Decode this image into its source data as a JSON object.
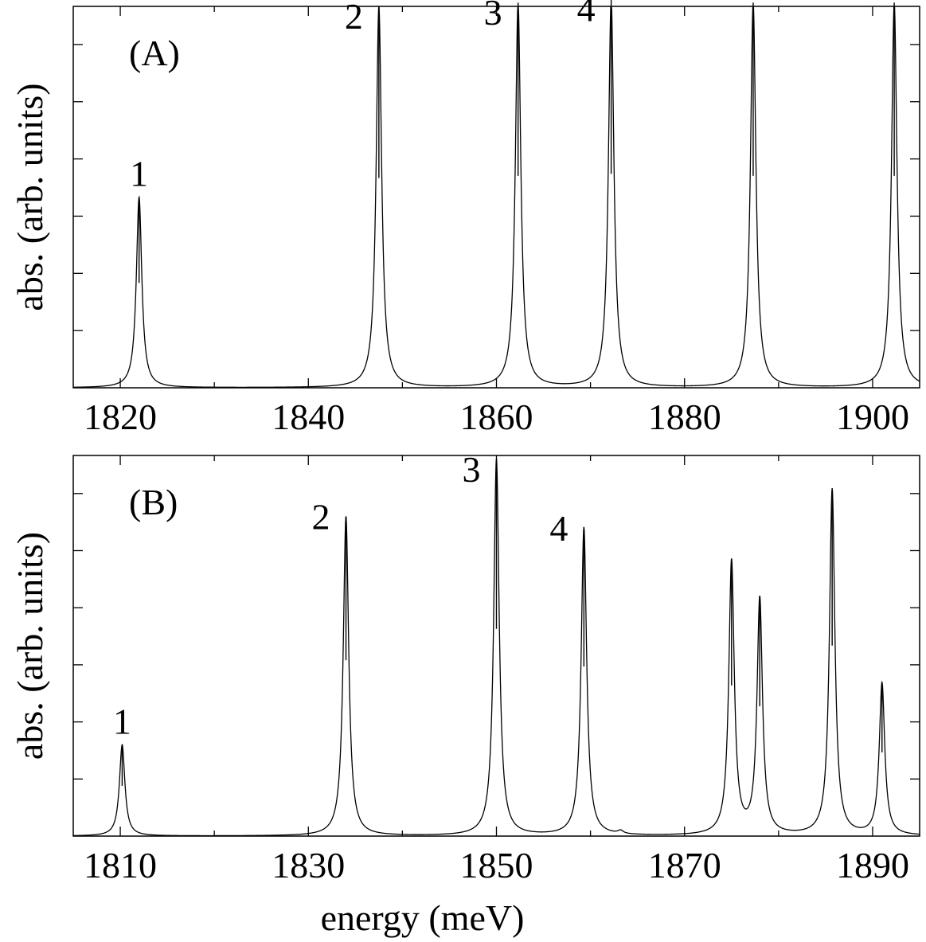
{
  "chart_data": [
    {
      "type": "line",
      "panel_label": "(A)",
      "xlabel": "",
      "ylabel": "abs. (arb. units)",
      "xlim": [
        1815,
        1905
      ],
      "ylim": [
        0,
        1.0
      ],
      "x_ticks": [
        1820,
        1840,
        1860,
        1880,
        1900
      ],
      "x_minor_ticks": [
        1830,
        1850,
        1870,
        1890
      ],
      "y_ticks": [
        0.15,
        0.3,
        0.45,
        0.6,
        0.75,
        0.9
      ],
      "show_y_tick_labels": false,
      "grid": false,
      "linewidth_peak": 0.35,
      "peaks": [
        {
          "x": 1822.0,
          "height": 0.5,
          "label": "1"
        },
        {
          "x": 1847.5,
          "height": 1.0,
          "label": "2"
        },
        {
          "x": 1862.3,
          "height": 1.01,
          "label": "3"
        },
        {
          "x": 1872.2,
          "height": 1.02,
          "label": "4"
        },
        {
          "x": 1887.3,
          "height": 1.01,
          "label": ""
        },
        {
          "x": 1902.3,
          "height": 1.01,
          "label": ""
        }
      ]
    },
    {
      "type": "line",
      "panel_label": "(B)",
      "xlabel": "energy (meV)",
      "ylabel": "abs. (arb. units)",
      "xlim": [
        1805,
        1895
      ],
      "ylim": [
        0,
        1.0
      ],
      "x_ticks": [
        1810,
        1830,
        1850,
        1870,
        1890
      ],
      "x_minor_ticks": [
        1820,
        1840,
        1860,
        1880
      ],
      "y_ticks": [
        0.15,
        0.3,
        0.45,
        0.6,
        0.75,
        0.9
      ],
      "show_y_tick_labels": false,
      "grid": false,
      "linewidth_peak": 0.35,
      "peaks": [
        {
          "x": 1810.2,
          "height": 0.24,
          "label": "1"
        },
        {
          "x": 1834.0,
          "height": 0.84,
          "label": "2"
        },
        {
          "x": 1850.0,
          "height": 0.99,
          "label": "3"
        },
        {
          "x": 1859.3,
          "height": 0.81,
          "label": "4"
        },
        {
          "x": 1863.2,
          "height": 0.008,
          "label": ""
        },
        {
          "x": 1875.0,
          "height": 0.72,
          "label": ""
        },
        {
          "x": 1878.0,
          "height": 0.62,
          "label": ""
        },
        {
          "x": 1885.7,
          "height": 0.91,
          "label": ""
        },
        {
          "x": 1891.0,
          "height": 0.4,
          "label": ""
        }
      ]
    }
  ]
}
